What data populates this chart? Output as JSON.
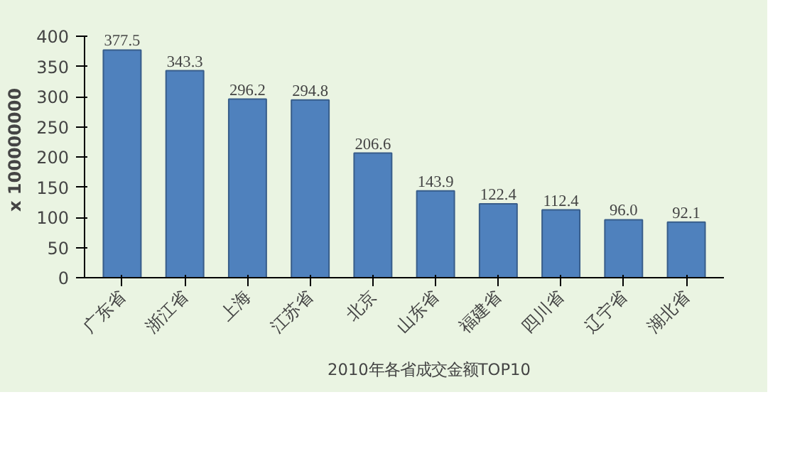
{
  "chart_data": {
    "type": "bar",
    "ylabel": "x 100000000",
    "categories": [
      "广东省",
      "浙江省",
      "上海",
      "江苏省",
      "北京",
      "山东省",
      "福建省",
      "四川省",
      "辽宁省",
      "湖北省"
    ],
    "series": [
      {
        "name": "2010年各省成交金额TOP10",
        "color": "#4f81bd",
        "values": [
          377.5,
          343.3,
          296.2,
          294.8,
          206.6,
          143.9,
          122.4,
          112.4,
          96.0,
          92.1
        ]
      }
    ],
    "value_labels": [
      "377.5",
      "343.3",
      "296.2",
      "294.8",
      "206.6",
      "143.9",
      "122.4",
      "112.4",
      "96.0",
      "92.1"
    ],
    "ylim": [
      0,
      400
    ],
    "yticks": [
      0,
      50,
      100,
      150,
      200,
      250,
      300,
      350,
      400
    ],
    "grid": false,
    "legend": "bottom"
  }
}
